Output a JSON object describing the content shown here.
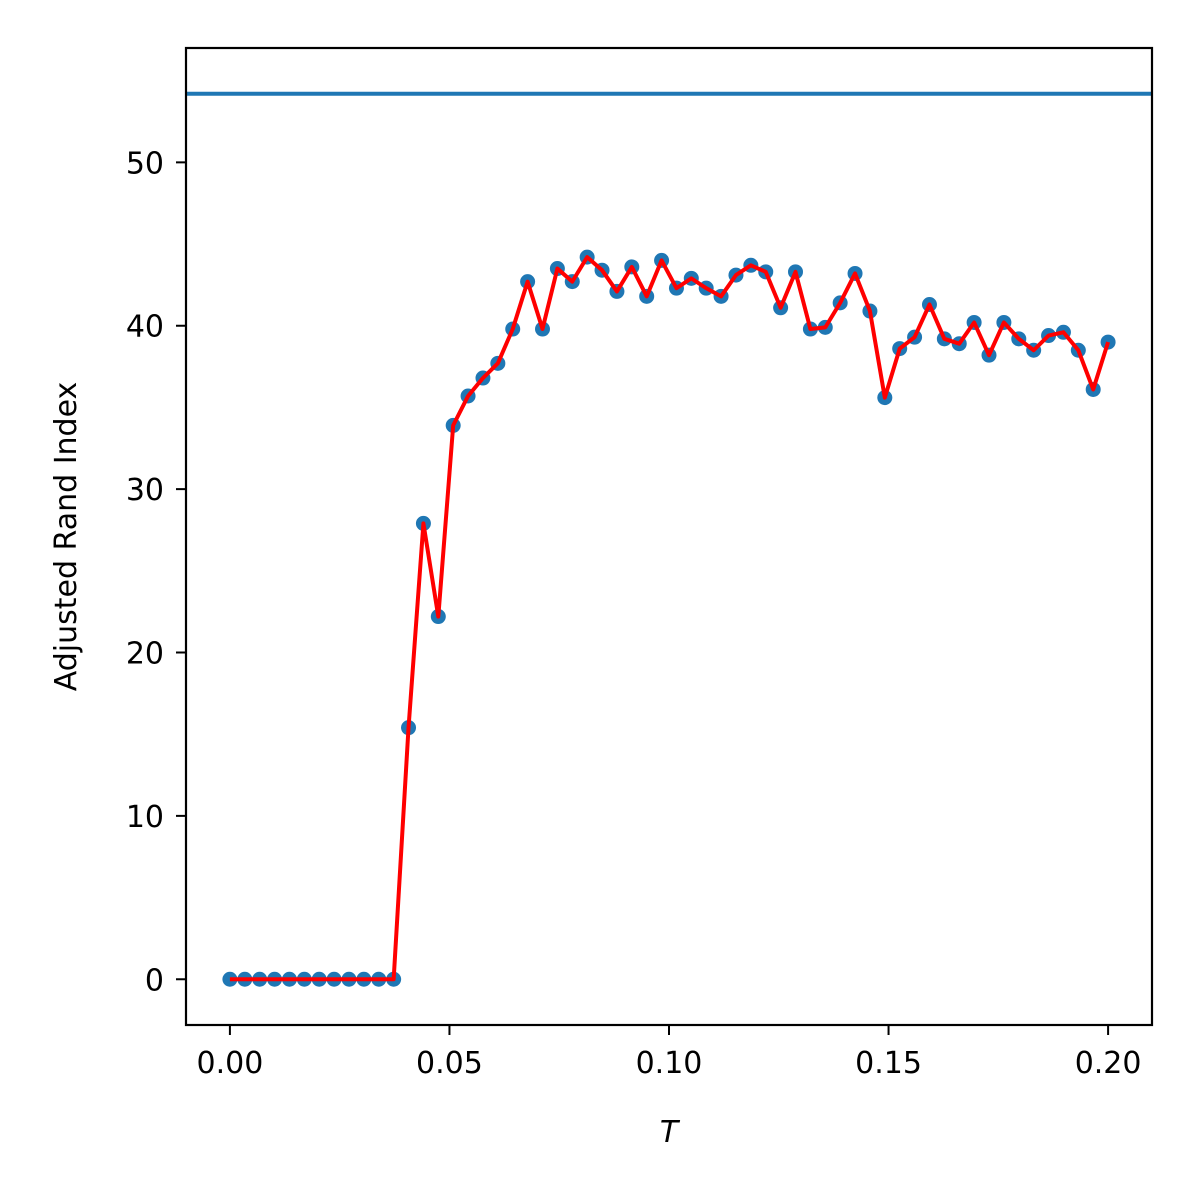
{
  "chart_data": {
    "type": "line",
    "title": "",
    "xlabel": "T",
    "ylabel": "Adjusted Rand Index",
    "xlim": [
      -0.01,
      0.21
    ],
    "ylim": [
      -2.8,
      57
    ],
    "xticks": [
      0.0,
      0.05,
      0.1,
      0.15,
      0.2
    ],
    "xtick_labels": [
      "0.00",
      "0.05",
      "0.10",
      "0.15",
      "0.20"
    ],
    "yticks": [
      0,
      10,
      20,
      30,
      40,
      50
    ],
    "ytick_labels": [
      "0",
      "10",
      "20",
      "30",
      "40",
      "50"
    ],
    "grid": false,
    "legend": "none",
    "reference_line": {
      "y": 54.2,
      "color": "#1f77b4"
    },
    "series": [
      {
        "style": "scatter",
        "color": "#1f77b4",
        "x": [
          0.0,
          0.00339,
          0.00678,
          0.01017,
          0.01356,
          0.01695,
          0.02034,
          0.02373,
          0.02712,
          0.03051,
          0.0339,
          0.03729,
          0.04068,
          0.04407,
          0.04746,
          0.05085,
          0.05424,
          0.05763,
          0.06102,
          0.06441,
          0.0678,
          0.07119,
          0.07458,
          0.07797,
          0.08136,
          0.08475,
          0.08814,
          0.09153,
          0.09492,
          0.09831,
          0.1017,
          0.10508,
          0.10847,
          0.11186,
          0.11525,
          0.11864,
          0.12203,
          0.12542,
          0.12881,
          0.1322,
          0.13559,
          0.13898,
          0.14237,
          0.14576,
          0.14915,
          0.15254,
          0.15593,
          0.15932,
          0.16271,
          0.1661,
          0.16949,
          0.17288,
          0.17627,
          0.17966,
          0.18305,
          0.18644,
          0.18983,
          0.19322,
          0.19661,
          0.2
        ],
        "y": [
          0.0,
          0.0,
          0.0,
          0.0,
          0.0,
          0.0,
          0.0,
          0.0,
          0.0,
          0.0,
          0.0,
          0.0,
          15.4,
          27.9,
          22.2,
          33.9,
          35.7,
          36.8,
          37.7,
          39.8,
          42.7,
          39.8,
          43.5,
          42.7,
          44.2,
          43.4,
          42.1,
          43.6,
          41.8,
          44.0,
          42.3,
          42.9,
          42.3,
          41.8,
          43.1,
          43.7,
          43.3,
          41.1,
          43.3,
          39.8,
          39.9,
          41.4,
          43.2,
          40.9,
          35.6,
          38.6,
          39.3,
          41.3,
          39.2,
          38.9,
          40.2,
          38.2,
          40.2,
          39.2,
          38.5,
          39.4,
          39.6,
          38.5,
          36.1,
          39.0
        ]
      },
      {
        "style": "line",
        "color": "#ff0000",
        "x": [
          0.0,
          0.00339,
          0.00678,
          0.01017,
          0.01356,
          0.01695,
          0.02034,
          0.02373,
          0.02712,
          0.03051,
          0.0339,
          0.03729,
          0.04068,
          0.04407,
          0.04746,
          0.05085,
          0.05424,
          0.05763,
          0.06102,
          0.06441,
          0.0678,
          0.07119,
          0.07458,
          0.07797,
          0.08136,
          0.08475,
          0.08814,
          0.09153,
          0.09492,
          0.09831,
          0.1017,
          0.10508,
          0.10847,
          0.11186,
          0.11525,
          0.11864,
          0.12203,
          0.12542,
          0.12881,
          0.1322,
          0.13559,
          0.13898,
          0.14237,
          0.14576,
          0.14915,
          0.15254,
          0.15593,
          0.15932,
          0.16271,
          0.1661,
          0.16949,
          0.17288,
          0.17627,
          0.17966,
          0.18305,
          0.18644,
          0.18983,
          0.19322,
          0.19661,
          0.2
        ],
        "y": [
          0.0,
          0.0,
          0.0,
          0.0,
          0.0,
          0.0,
          0.0,
          0.0,
          0.0,
          0.0,
          0.0,
          0.0,
          15.4,
          27.9,
          22.2,
          33.9,
          35.7,
          36.8,
          37.7,
          39.8,
          42.7,
          39.8,
          43.5,
          42.7,
          44.2,
          43.4,
          42.1,
          43.6,
          41.8,
          44.0,
          42.3,
          42.9,
          42.3,
          41.8,
          43.1,
          43.7,
          43.3,
          41.1,
          43.3,
          39.8,
          39.9,
          41.4,
          43.2,
          40.9,
          35.6,
          38.6,
          39.3,
          41.3,
          39.2,
          38.9,
          40.2,
          38.2,
          40.2,
          39.2,
          38.5,
          39.4,
          39.6,
          38.5,
          36.1,
          39.0
        ]
      }
    ]
  }
}
